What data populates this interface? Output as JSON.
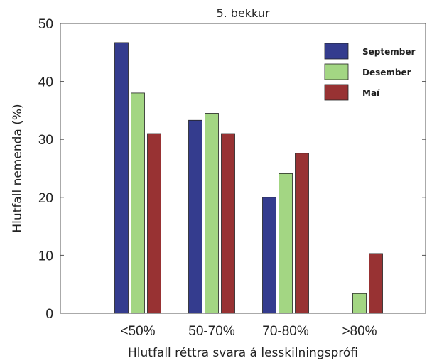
{
  "chart_data": {
    "type": "bar",
    "title": "5. bekkur",
    "xlabel": "Hlutfall réttra svara á lesskilningsprófi",
    "ylabel": "Hlutfall nemenda (%)",
    "ylim": [
      0,
      50
    ],
    "yticks": [
      "0",
      "10",
      "20",
      "30",
      "40",
      "50"
    ],
    "categories": [
      "<50%",
      "50-70%",
      "70-80%",
      ">80%"
    ],
    "series": [
      {
        "name": "September",
        "color": "#343c8e",
        "values": [
          46.7,
          33.3,
          20.0,
          0
        ]
      },
      {
        "name": "Desember",
        "color": "#a3d683",
        "values": [
          38.0,
          34.5,
          24.1,
          3.4
        ]
      },
      {
        "name": "Maí",
        "color": "#983233",
        "values": [
          31.0,
          31.0,
          27.6,
          10.3
        ]
      }
    ],
    "legend_position": "top-right",
    "grid": false
  }
}
